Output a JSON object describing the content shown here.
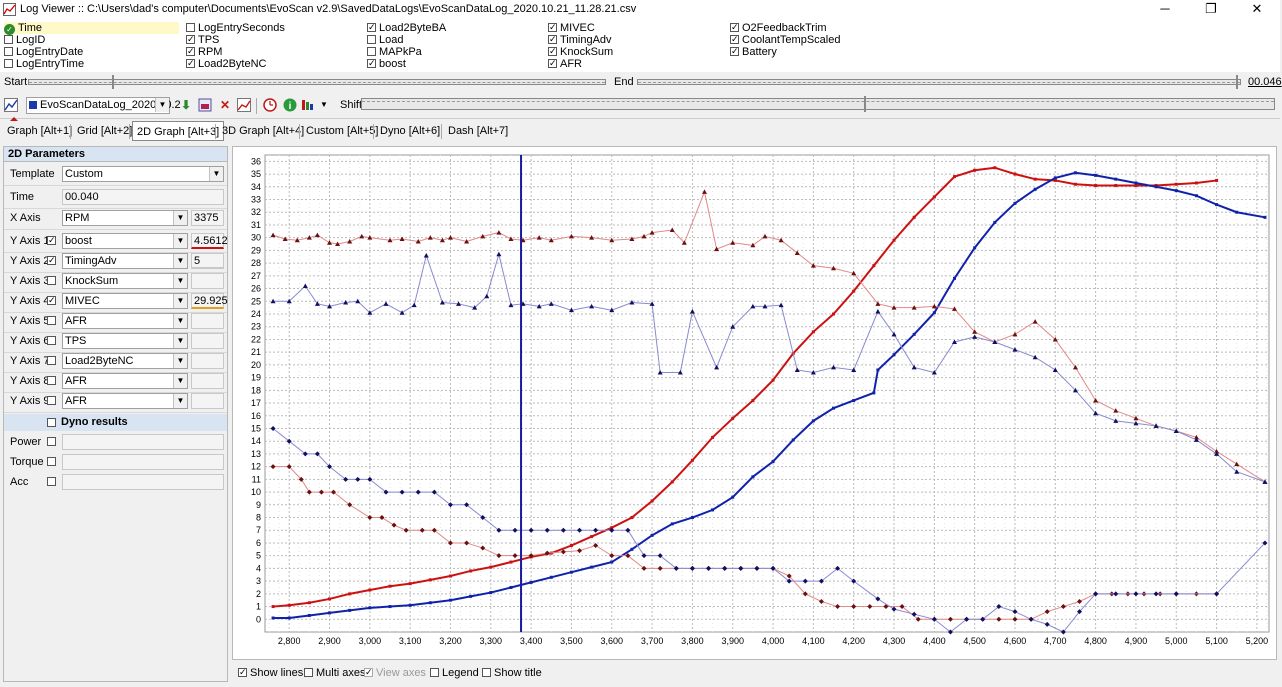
{
  "window": {
    "title": "Log Viewer :: C:\\Users\\dad's computer\\Documents\\EvoScan v2.9\\SavedDataLogs\\EvoScanDataLog_2020.10.21_11.28.21.csv",
    "minimize": "─",
    "restore": "❐",
    "close": "✕"
  },
  "fields": [
    {
      "label": "Time",
      "checked": true,
      "highlight": true
    },
    {
      "label": "LogID",
      "checked": false
    },
    {
      "label": "LogEntryDate",
      "checked": false
    },
    {
      "label": "LogEntryTime",
      "checked": false
    },
    {
      "label": "LogEntrySeconds",
      "checked": false
    },
    {
      "label": "TPS",
      "checked": true
    },
    {
      "label": "RPM",
      "checked": true
    },
    {
      "label": "Load2ByteNC",
      "checked": true
    },
    {
      "label": "Load2ByteBA",
      "checked": true
    },
    {
      "label": "Load",
      "checked": false
    },
    {
      "label": "MAPkPa",
      "checked": false
    },
    {
      "label": "boost",
      "checked": true
    },
    {
      "label": "MIVEC",
      "checked": true
    },
    {
      "label": "TimingAdv",
      "checked": true
    },
    {
      "label": "KnockSum",
      "checked": true
    },
    {
      "label": "AFR",
      "checked": true
    },
    {
      "label": "O2FeedbackTrim",
      "checked": true
    },
    {
      "label": "CoolantTempScaled",
      "checked": true
    },
    {
      "label": "Battery",
      "checked": true
    }
  ],
  "range": {
    "start_label": "Start",
    "end_label": "End",
    "value": "00.046"
  },
  "toolbar": {
    "log_select": "EvoScanDataLog_2020.10.2",
    "shift_label": "Shift"
  },
  "tabs": [
    "Graph [Alt+1]",
    "Grid [Alt+2]",
    "2D Graph [Alt+3]",
    "3D Graph [Alt+4]",
    "Custom [Alt+5]",
    "Dyno [Alt+6]",
    "Dash [Alt+7]"
  ],
  "active_tab": 2,
  "params": {
    "header": "2D Parameters",
    "template_label": "Template",
    "template_value": "Custom",
    "time_label": "Time",
    "time_value": "00.040",
    "xaxis_label": "X Axis",
    "xaxis_value": "RPM",
    "xaxis_reading": "3375",
    "yaxes": [
      {
        "label": "Y Axis 1",
        "checked": true,
        "value": "boost",
        "reading": "4.5612"
      },
      {
        "label": "Y Axis 2",
        "checked": true,
        "value": "TimingAdv",
        "reading": "5"
      },
      {
        "label": "Y Axis 3",
        "checked": false,
        "value": "KnockSum",
        "reading": ""
      },
      {
        "label": "Y Axis 4",
        "checked": true,
        "value": "MIVEC",
        "reading": "29.925"
      },
      {
        "label": "Y Axis 5",
        "checked": false,
        "value": "AFR",
        "reading": ""
      },
      {
        "label": "Y Axis 6",
        "checked": false,
        "value": "TPS",
        "reading": ""
      },
      {
        "label": "Y Axis 7",
        "checked": false,
        "value": "Load2ByteNC",
        "reading": ""
      },
      {
        "label": "Y Axis 8",
        "checked": false,
        "value": "AFR",
        "reading": ""
      },
      {
        "label": "Y Axis 9",
        "checked": false,
        "value": "AFR",
        "reading": ""
      }
    ],
    "dyno_label": "Dyno results",
    "power_label": "Power",
    "torque_label": "Torque",
    "acc_label": "Acc"
  },
  "bottom": {
    "show_lines": "Show lines",
    "multi_axes": "Multi axes",
    "view_axes": "View axes",
    "legend": "Legend",
    "show_title": "Show title"
  },
  "chart_data": {
    "type": "line",
    "xlabel": "RPM",
    "ylabel": "",
    "xlim": [
      2740,
      5230
    ],
    "ylim": [
      -1,
      36.5
    ],
    "xticks": [
      2800,
      2900,
      3000,
      3100,
      3200,
      3300,
      3400,
      3500,
      3600,
      3700,
      3800,
      3900,
      4000,
      4100,
      4200,
      4300,
      4400,
      4500,
      4600,
      4700,
      4800,
      4900,
      5000,
      5100,
      5200
    ],
    "xtick_labels": [
      "2,800",
      "2,900",
      "3,000",
      "3,100",
      "3,200",
      "3,300",
      "3,400",
      "3,500",
      "3,600",
      "3,700",
      "3,800",
      "3,900",
      "4,000",
      "4,100",
      "4,200",
      "4,300",
      "4,400",
      "4,500",
      "4,600",
      "4,700",
      "4,800",
      "4,900",
      "5,000",
      "5,100",
      "5,200"
    ],
    "yticks": [
      0,
      1,
      2,
      3,
      4,
      5,
      6,
      7,
      8,
      9,
      10,
      11,
      12,
      13,
      14,
      15,
      16,
      17,
      18,
      19,
      20,
      21,
      22,
      23,
      24,
      25,
      26,
      27,
      28,
      29,
      30,
      31,
      32,
      33,
      34,
      35,
      36
    ],
    "cursor_x": 3375,
    "colors": {
      "red": "#cc1111",
      "blue": "#1122aa",
      "darkred": "#6a1010",
      "navy": "#101060",
      "lightred": "#e07070",
      "lightblue": "#8080c8"
    },
    "series": [
      {
        "name": "Load2ByteNC",
        "color": "#cc1111",
        "width": 2,
        "marker": "none",
        "x": [
          2760,
          2800,
          2850,
          2900,
          2950,
          3000,
          3050,
          3100,
          3150,
          3200,
          3250,
          3300,
          3350,
          3400,
          3450,
          3500,
          3550,
          3600,
          3650,
          3700,
          3750,
          3800,
          3850,
          3900,
          3950,
          4000,
          4050,
          4100,
          4150,
          4200,
          4250,
          4300,
          4350,
          4400,
          4450,
          4500,
          4550,
          4600,
          4650,
          4700,
          4750,
          4800,
          4850,
          4900,
          4950,
          5000,
          5050,
          5100
        ],
        "y": [
          1.0,
          1.1,
          1.3,
          1.6,
          2.0,
          2.3,
          2.6,
          2.8,
          3.1,
          3.4,
          3.8,
          4.1,
          4.5,
          4.9,
          5.2,
          5.8,
          6.5,
          7.2,
          8.0,
          9.3,
          10.8,
          12.5,
          14.3,
          15.8,
          17.2,
          18.8,
          20.9,
          22.6,
          24.0,
          25.8,
          27.8,
          29.8,
          31.6,
          33.2,
          34.8,
          35.3,
          35.5,
          35.0,
          34.6,
          34.5,
          34.2,
          34.1,
          34.1,
          34.1,
          34.1,
          34.2,
          34.3,
          34.5
        ]
      },
      {
        "name": "Load2ByteBA",
        "color": "#1122aa",
        "width": 2,
        "marker": "none",
        "x": [
          2760,
          2800,
          2850,
          2900,
          2950,
          3000,
          3050,
          3100,
          3150,
          3200,
          3250,
          3300,
          3350,
          3400,
          3450,
          3500,
          3550,
          3600,
          3650,
          3700,
          3750,
          3800,
          3850,
          3900,
          3950,
          4000,
          4050,
          4100,
          4150,
          4200,
          4250,
          4260,
          4300,
          4350,
          4400,
          4450,
          4500,
          4550,
          4600,
          4650,
          4700,
          4750,
          4800,
          4850,
          4900,
          4950,
          5000,
          5050,
          5100,
          5150,
          5220
        ],
        "y": [
          0.1,
          0.1,
          0.3,
          0.5,
          0.7,
          0.9,
          1.0,
          1.1,
          1.3,
          1.5,
          1.8,
          2.1,
          2.5,
          2.9,
          3.3,
          3.7,
          4.1,
          4.5,
          5.5,
          6.6,
          7.5,
          8.0,
          8.6,
          9.6,
          11.2,
          12.4,
          14.1,
          15.6,
          16.6,
          17.2,
          17.8,
          19.6,
          20.8,
          22.4,
          24.1,
          26.8,
          29.2,
          31.2,
          32.7,
          33.8,
          34.7,
          35.1,
          34.9,
          34.6,
          34.3,
          34.0,
          33.7,
          33.3,
          32.6,
          32.0,
          31.6
        ]
      },
      {
        "name": "MIVEC",
        "color": "#6a1010",
        "width": 1,
        "marker": "triangle",
        "x": [
          2760,
          2790,
          2820,
          2850,
          2870,
          2900,
          2920,
          2950,
          2980,
          3000,
          3050,
          3080,
          3120,
          3150,
          3180,
          3200,
          3240,
          3280,
          3320,
          3350,
          3380,
          3420,
          3450,
          3500,
          3550,
          3600,
          3650,
          3680,
          3700,
          3750,
          3780,
          3830,
          3860,
          3900,
          3950,
          3980,
          4020,
          4060,
          4100,
          4150,
          4200,
          4260,
          4300,
          4350,
          4400,
          4450,
          4500,
          4550,
          4600,
          4650,
          4700,
          4750,
          4800,
          4850,
          4900,
          4950,
          5000,
          5050,
          5100,
          5150,
          5220
        ],
        "y": [
          30.2,
          29.9,
          29.8,
          30.0,
          30.2,
          29.6,
          29.5,
          29.7,
          30.1,
          30.0,
          29.8,
          29.9,
          29.7,
          30.0,
          29.8,
          30.0,
          29.7,
          30.1,
          30.4,
          29.9,
          29.8,
          30.0,
          29.8,
          30.1,
          30.0,
          29.8,
          29.9,
          30.1,
          30.4,
          30.6,
          29.6,
          33.6,
          29.1,
          29.6,
          29.4,
          30.1,
          29.8,
          28.8,
          27.8,
          27.6,
          27.2,
          24.8,
          24.5,
          24.5,
          24.6,
          24.4,
          22.6,
          21.8,
          22.4,
          23.4,
          22.0,
          19.8,
          17.2,
          16.4,
          15.8,
          15.2,
          14.8,
          14.3,
          13.2,
          12.2,
          10.8
        ]
      },
      {
        "name": "TimingAdv",
        "color": "#101060",
        "width": 1,
        "marker": "triangle",
        "x": [
          2760,
          2800,
          2840,
          2870,
          2900,
          2940,
          2970,
          3000,
          3040,
          3080,
          3110,
          3140,
          3180,
          3220,
          3260,
          3290,
          3320,
          3350,
          3380,
          3420,
          3450,
          3500,
          3550,
          3600,
          3650,
          3700,
          3720,
          3770,
          3800,
          3860,
          3900,
          3950,
          3980,
          4020,
          4060,
          4100,
          4150,
          4200,
          4260,
          4300,
          4350,
          4400,
          4450,
          4500,
          4550,
          4600,
          4650,
          4700,
          4750,
          4800,
          4850,
          4900,
          4950,
          5000,
          5050,
          5100,
          5150,
          5220
        ],
        "y": [
          25.0,
          25.0,
          26.2,
          24.8,
          24.6,
          24.9,
          25.0,
          24.1,
          24.8,
          24.1,
          24.7,
          28.6,
          24.9,
          24.8,
          24.5,
          25.4,
          28.7,
          24.7,
          24.8,
          24.6,
          24.8,
          24.3,
          24.6,
          24.3,
          24.9,
          24.8,
          19.4,
          19.4,
          24.2,
          19.8,
          23.0,
          24.6,
          24.6,
          24.7,
          19.6,
          19.4,
          19.8,
          19.6,
          24.2,
          22.4,
          19.8,
          19.4,
          21.8,
          22.2,
          21.8,
          21.2,
          20.6,
          19.6,
          18.0,
          16.2,
          15.6,
          15.4,
          15.2,
          14.8,
          14.1,
          13.0,
          11.6,
          10.8
        ]
      },
      {
        "name": "AFR",
        "color": "#6a1010",
        "width": 1,
        "marker": "diamond",
        "x": [
          2760,
          2800,
          2830,
          2850,
          2880,
          2910,
          2950,
          3000,
          3030,
          3060,
          3090,
          3130,
          3160,
          3200,
          3240,
          3280,
          3320,
          3360,
          3400,
          3440,
          3480,
          3520,
          3560,
          3600,
          3640,
          3680,
          3720,
          3760,
          3800,
          3840,
          3880,
          3920,
          3960,
          4000,
          4040,
          4080,
          4120,
          4160,
          4200,
          4240,
          4280,
          4320,
          4360,
          4400,
          4440,
          4480,
          4520,
          4560,
          4600,
          4640,
          4680,
          4720,
          4760,
          4800,
          4840,
          4880,
          4920,
          4960,
          5000,
          5050,
          5100
        ],
        "y": [
          12.0,
          12.0,
          11.0,
          10.0,
          10.0,
          10.0,
          9.0,
          8.0,
          8.0,
          7.4,
          7.0,
          7.0,
          7.0,
          6.0,
          6.0,
          5.6,
          5.0,
          5.0,
          5.0,
          5.2,
          5.3,
          5.4,
          5.8,
          5.0,
          5.0,
          4.0,
          4.0,
          4.0,
          4.0,
          4.0,
          4.0,
          4.0,
          4.0,
          4.0,
          3.4,
          2.0,
          1.4,
          1.0,
          1.0,
          1.0,
          1.0,
          1.0,
          0.0,
          0.0,
          0.0,
          0.0,
          0.0,
          0.0,
          0.0,
          0.0,
          0.6,
          1.0,
          1.4,
          2.0,
          2.0,
          2.0,
          2.0,
          2.0,
          2.0,
          2.0,
          2.0
        ]
      },
      {
        "name": "KnockSum",
        "color": "#101060",
        "width": 1,
        "marker": "diamond",
        "x": [
          2760,
          2800,
          2840,
          2870,
          2900,
          2940,
          2970,
          3000,
          3040,
          3080,
          3120,
          3160,
          3200,
          3240,
          3280,
          3320,
          3360,
          3400,
          3440,
          3480,
          3520,
          3560,
          3600,
          3640,
          3680,
          3720,
          3760,
          3800,
          3840,
          3880,
          3920,
          3960,
          4000,
          4040,
          4080,
          4120,
          4160,
          4200,
          4260,
          4300,
          4350,
          4400,
          4440,
          4480,
          4520,
          4560,
          4600,
          4640,
          4680,
          4720,
          4760,
          4800,
          4850,
          4900,
          4950,
          5000,
          5100,
          5220
        ],
        "y": [
          15.0,
          14.0,
          13.0,
          13.0,
          12.0,
          11.0,
          11.0,
          11.0,
          10.0,
          10.0,
          10.0,
          10.0,
          9.0,
          9.0,
          8.0,
          7.0,
          7.0,
          7.0,
          7.0,
          7.0,
          7.0,
          7.0,
          7.0,
          7.0,
          5.0,
          5.0,
          4.0,
          4.0,
          4.0,
          4.0,
          4.0,
          4.0,
          4.0,
          3.0,
          3.0,
          3.0,
          4.0,
          3.0,
          1.6,
          0.8,
          0.4,
          0.0,
          -1.0,
          0.0,
          0.0,
          1.0,
          0.6,
          0.0,
          -0.4,
          -1.0,
          0.6,
          2.0,
          2.0,
          2.0,
          2.0,
          2.0,
          2.0,
          6.0
        ]
      }
    ]
  }
}
